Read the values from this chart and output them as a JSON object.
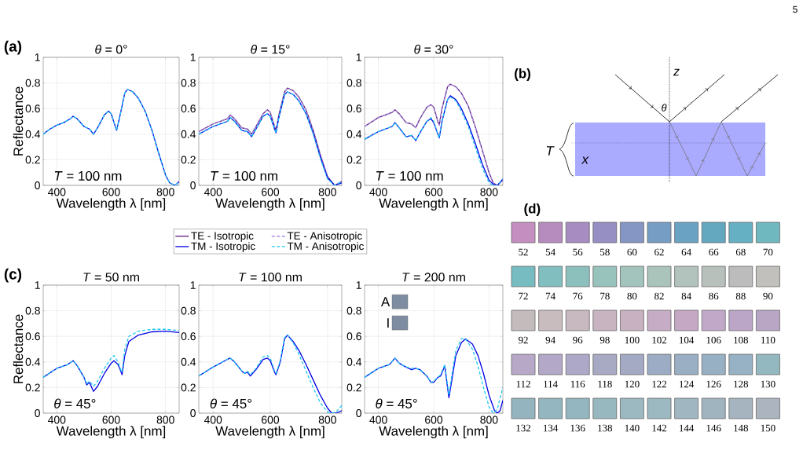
{
  "chart_data": [
    {
      "type": "line",
      "title": "*θ* = 0°",
      "xlabel": "Wavelength λ [nm]",
      "ylabel": "Reflectance",
      "annotations": [
        "*T* = 100 nm",
        "(a)"
      ],
      "xlim": [
        350,
        850
      ],
      "ylim": [
        0,
        1
      ],
      "xticks": [
        400,
        600,
        800
      ],
      "yticks": [
        0,
        0.2,
        0.4,
        0.6,
        0.8,
        1
      ],
      "grid": true,
      "series": [
        {
          "color": "#0000e6",
          "line_style": "solid",
          "x": [
            350,
            375,
            400,
            425,
            450,
            460,
            475,
            500,
            520,
            535,
            550,
            575,
            590,
            600,
            615,
            620,
            630,
            650,
            660,
            680,
            700,
            725,
            750,
            775,
            800,
            815,
            835,
            850
          ],
          "values": [
            0.4,
            0.44,
            0.47,
            0.49,
            0.52,
            0.54,
            0.52,
            0.46,
            0.44,
            0.4,
            0.45,
            0.55,
            0.58,
            0.56,
            0.46,
            0.43,
            0.52,
            0.72,
            0.75,
            0.73,
            0.68,
            0.58,
            0.43,
            0.25,
            0.08,
            0.02,
            0.0,
            0.03
          ]
        },
        {
          "color": "#1ec8f0",
          "line_style": "dashed",
          "x": [
            350,
            375,
            400,
            425,
            450,
            460,
            475,
            500,
            520,
            535,
            550,
            575,
            590,
            600,
            615,
            620,
            630,
            650,
            660,
            680,
            700,
            725,
            750,
            775,
            800,
            815,
            835,
            850
          ],
          "values": [
            0.4,
            0.44,
            0.47,
            0.49,
            0.52,
            0.54,
            0.52,
            0.46,
            0.44,
            0.4,
            0.45,
            0.55,
            0.58,
            0.56,
            0.46,
            0.43,
            0.52,
            0.72,
            0.75,
            0.73,
            0.68,
            0.58,
            0.43,
            0.25,
            0.08,
            0.02,
            0.0,
            0.03
          ]
        }
      ]
    },
    {
      "type": "line",
      "title": "*θ* = 15°",
      "xlabel": "Wavelength λ [nm]",
      "annotations": [
        "*T* = 100 nm"
      ],
      "xlim": [
        350,
        850
      ],
      "ylim": [
        0,
        1
      ],
      "xticks": [
        400,
        600,
        800
      ],
      "yticks": [
        0,
        0.2,
        0.4,
        0.6,
        0.8,
        1
      ],
      "grid": true,
      "legend": "bottom",
      "series": [
        {
          "name": "TE - Isotropic",
          "color": "#5b1a7a",
          "line_style": "solid",
          "x": [
            350,
            400,
            450,
            460,
            475,
            500,
            520,
            535,
            550,
            575,
            590,
            600,
            615,
            620,
            630,
            650,
            660,
            680,
            700,
            725,
            750,
            775,
            800,
            825,
            850
          ],
          "values": [
            0.42,
            0.48,
            0.52,
            0.55,
            0.52,
            0.45,
            0.44,
            0.4,
            0.46,
            0.56,
            0.59,
            0.57,
            0.46,
            0.43,
            0.55,
            0.73,
            0.76,
            0.74,
            0.69,
            0.59,
            0.43,
            0.24,
            0.07,
            0.0,
            0.03
          ]
        },
        {
          "name": "TE - Anisotropic",
          "color": "#a98ee0",
          "line_style": "dashed",
          "x": [
            350,
            400,
            450,
            460,
            475,
            500,
            520,
            535,
            550,
            575,
            590,
            600,
            615,
            620,
            630,
            650,
            660,
            680,
            700,
            725,
            750,
            775,
            800,
            825,
            850
          ],
          "values": [
            0.42,
            0.48,
            0.52,
            0.55,
            0.52,
            0.45,
            0.44,
            0.4,
            0.46,
            0.56,
            0.59,
            0.57,
            0.46,
            0.43,
            0.55,
            0.73,
            0.76,
            0.74,
            0.69,
            0.59,
            0.43,
            0.24,
            0.07,
            0.0,
            0.03
          ]
        },
        {
          "name": "TM - Isotropic",
          "color": "#0000e6",
          "line_style": "solid",
          "x": [
            350,
            400,
            450,
            460,
            475,
            500,
            520,
            535,
            550,
            575,
            590,
            600,
            615,
            620,
            630,
            650,
            660,
            680,
            700,
            725,
            750,
            775,
            800,
            825,
            850
          ],
          "values": [
            0.4,
            0.46,
            0.5,
            0.53,
            0.5,
            0.43,
            0.42,
            0.38,
            0.44,
            0.54,
            0.56,
            0.54,
            0.44,
            0.41,
            0.53,
            0.71,
            0.73,
            0.71,
            0.66,
            0.56,
            0.41,
            0.22,
            0.06,
            0.0,
            0.02
          ]
        },
        {
          "name": "TM - Anisotropic",
          "color": "#1ec8f0",
          "line_style": "dashed",
          "x": [
            350,
            400,
            450,
            460,
            475,
            500,
            520,
            535,
            550,
            575,
            590,
            600,
            615,
            620,
            630,
            650,
            660,
            680,
            700,
            725,
            750,
            775,
            800,
            825,
            850
          ],
          "values": [
            0.4,
            0.46,
            0.5,
            0.53,
            0.5,
            0.43,
            0.42,
            0.38,
            0.44,
            0.54,
            0.56,
            0.54,
            0.44,
            0.41,
            0.53,
            0.71,
            0.73,
            0.71,
            0.66,
            0.56,
            0.4,
            0.21,
            0.05,
            0.0,
            0.03
          ]
        }
      ]
    },
    {
      "type": "line",
      "title": "*θ* = 30°",
      "xlabel": "Wavelength λ [nm]",
      "annotations": [
        "*T* = 100 nm"
      ],
      "xlim": [
        350,
        850
      ],
      "ylim": [
        0,
        1
      ],
      "xticks": [
        400,
        600,
        800
      ],
      "yticks": [
        0,
        0.2,
        0.4,
        0.6,
        0.8,
        1
      ],
      "grid": true,
      "series": [
        {
          "color": "#5b1a7a",
          "line_style": "solid",
          "x": [
            350,
            400,
            450,
            460,
            475,
            500,
            520,
            535,
            550,
            575,
            590,
            600,
            615,
            620,
            630,
            650,
            660,
            680,
            700,
            725,
            750,
            775,
            800,
            815,
            830,
            850
          ],
          "values": [
            0.46,
            0.53,
            0.57,
            0.59,
            0.56,
            0.49,
            0.48,
            0.45,
            0.52,
            0.61,
            0.63,
            0.61,
            0.5,
            0.47,
            0.6,
            0.77,
            0.79,
            0.77,
            0.72,
            0.62,
            0.46,
            0.28,
            0.1,
            0.02,
            0.0,
            0.04
          ]
        },
        {
          "color": "#a98ee0",
          "line_style": "dashed",
          "x": [
            350,
            400,
            450,
            460,
            475,
            500,
            520,
            535,
            550,
            575,
            590,
            600,
            615,
            620,
            630,
            650,
            660,
            680,
            700,
            725,
            750,
            775,
            800,
            815,
            830,
            850
          ],
          "values": [
            0.46,
            0.53,
            0.57,
            0.59,
            0.56,
            0.49,
            0.48,
            0.45,
            0.52,
            0.61,
            0.63,
            0.61,
            0.5,
            0.47,
            0.6,
            0.77,
            0.79,
            0.77,
            0.72,
            0.62,
            0.46,
            0.28,
            0.1,
            0.02,
            0.0,
            0.04
          ]
        },
        {
          "color": "#0000e6",
          "line_style": "solid",
          "x": [
            350,
            400,
            450,
            460,
            475,
            500,
            520,
            535,
            550,
            575,
            590,
            600,
            615,
            620,
            630,
            650,
            660,
            680,
            700,
            725,
            750,
            775,
            800,
            815,
            830,
            850
          ],
          "values": [
            0.36,
            0.42,
            0.46,
            0.49,
            0.45,
            0.38,
            0.39,
            0.35,
            0.41,
            0.5,
            0.52,
            0.49,
            0.4,
            0.37,
            0.5,
            0.67,
            0.7,
            0.67,
            0.6,
            0.48,
            0.33,
            0.17,
            0.04,
            0.01,
            0.0,
            0.05
          ]
        },
        {
          "color": "#1ec8f0",
          "line_style": "dashed",
          "x": [
            350,
            400,
            450,
            460,
            475,
            500,
            520,
            535,
            550,
            575,
            590,
            600,
            615,
            620,
            630,
            650,
            660,
            680,
            700,
            725,
            750,
            775,
            800,
            815,
            830,
            850
          ],
          "values": [
            0.36,
            0.42,
            0.46,
            0.49,
            0.45,
            0.38,
            0.39,
            0.35,
            0.41,
            0.5,
            0.53,
            0.5,
            0.4,
            0.37,
            0.5,
            0.67,
            0.69,
            0.66,
            0.58,
            0.46,
            0.3,
            0.14,
            0.02,
            0.0,
            0.0,
            0.05
          ]
        }
      ]
    },
    {
      "type": "line",
      "title": "*T* = 50 nm",
      "xlabel": "Wavelength λ [nm]",
      "ylabel": "Reflectance",
      "annotations": [
        "*θ* = 45°",
        "(c)"
      ],
      "xlim": [
        350,
        850
      ],
      "ylim": [
        0,
        1
      ],
      "xticks": [
        400,
        600,
        800
      ],
      "yticks": [
        0,
        0.2,
        0.4,
        0.6,
        0.8,
        1
      ],
      "grid": true,
      "series": [
        {
          "color": "#0000e6",
          "line_style": "solid",
          "x": [
            350,
            400,
            440,
            460,
            475,
            500,
            510,
            520,
            535,
            550,
            575,
            600,
            610,
            625,
            635,
            640,
            650,
            665,
            700,
            750,
            800,
            850
          ],
          "values": [
            0.28,
            0.35,
            0.38,
            0.41,
            0.37,
            0.28,
            0.22,
            0.24,
            0.17,
            0.21,
            0.31,
            0.39,
            0.41,
            0.38,
            0.33,
            0.3,
            0.45,
            0.56,
            0.61,
            0.635,
            0.64,
            0.63
          ]
        },
        {
          "color": "#1ec8f0",
          "line_style": "dashed",
          "x": [
            350,
            400,
            440,
            460,
            475,
            500,
            510,
            520,
            535,
            550,
            575,
            600,
            610,
            625,
            635,
            640,
            650,
            665,
            700,
            750,
            800,
            850
          ],
          "values": [
            0.28,
            0.35,
            0.38,
            0.41,
            0.37,
            0.28,
            0.23,
            0.25,
            0.21,
            0.25,
            0.35,
            0.43,
            0.45,
            0.4,
            0.34,
            0.32,
            0.5,
            0.6,
            0.64,
            0.655,
            0.655,
            0.645
          ]
        }
      ]
    },
    {
      "type": "line",
      "title": "*T* = 100 nm",
      "xlabel": "Wavelength λ [nm]",
      "annotations": [
        "*θ* = 45°"
      ],
      "xlim": [
        350,
        850
      ],
      "ylim": [
        0,
        1
      ],
      "xticks": [
        400,
        600,
        800
      ],
      "yticks": [
        0,
        0.2,
        0.4,
        0.6,
        0.8,
        1
      ],
      "grid": true,
      "series": [
        {
          "color": "#0000e6",
          "line_style": "solid",
          "x": [
            350,
            400,
            450,
            460,
            475,
            500,
            510,
            520,
            530,
            550,
            575,
            590,
            600,
            615,
            620,
            635,
            650,
            660,
            680,
            700,
            725,
            750,
            775,
            800,
            815,
            830,
            850
          ],
          "values": [
            0.29,
            0.36,
            0.42,
            0.43,
            0.4,
            0.33,
            0.31,
            0.32,
            0.29,
            0.34,
            0.42,
            0.43,
            0.41,
            0.32,
            0.3,
            0.4,
            0.58,
            0.61,
            0.56,
            0.49,
            0.38,
            0.26,
            0.14,
            0.04,
            0.0,
            0.0,
            0.02
          ]
        },
        {
          "color": "#1ec8f0",
          "line_style": "dashed",
          "x": [
            350,
            400,
            450,
            460,
            475,
            500,
            510,
            520,
            530,
            550,
            575,
            590,
            600,
            615,
            620,
            635,
            650,
            660,
            680,
            700,
            725,
            750,
            775,
            800,
            815,
            830,
            850
          ],
          "values": [
            0.29,
            0.36,
            0.42,
            0.43,
            0.4,
            0.33,
            0.31,
            0.33,
            0.3,
            0.35,
            0.44,
            0.45,
            0.43,
            0.33,
            0.31,
            0.41,
            0.59,
            0.61,
            0.55,
            0.46,
            0.33,
            0.2,
            0.08,
            0.01,
            0.0,
            0.01,
            0.06
          ]
        }
      ]
    },
    {
      "type": "line",
      "title": "*T* = 200 nm",
      "xlabel": "Wavelength λ [nm]",
      "annotations": [
        "*θ* = 45°",
        "A",
        "I"
      ],
      "xlim": [
        350,
        850
      ],
      "ylim": [
        0,
        1
      ],
      "xticks": [
        400,
        600,
        800
      ],
      "yticks": [
        0,
        0.2,
        0.4,
        0.6,
        0.8,
        1
      ],
      "grid": true,
      "series": [
        {
          "color": "#0000e6",
          "line_style": "solid",
          "x": [
            350,
            400,
            440,
            460,
            475,
            500,
            520,
            535,
            550,
            575,
            590,
            600,
            615,
            625,
            640,
            650,
            655,
            665,
            680,
            700,
            715,
            740,
            760,
            780,
            800,
            820,
            830,
            840,
            850
          ],
          "values": [
            0.28,
            0.35,
            0.38,
            0.43,
            0.39,
            0.36,
            0.34,
            0.35,
            0.34,
            0.29,
            0.24,
            0.24,
            0.28,
            0.29,
            0.37,
            0.2,
            0.12,
            0.25,
            0.45,
            0.55,
            0.58,
            0.54,
            0.45,
            0.31,
            0.14,
            0.02,
            0.0,
            0.02,
            0.1
          ]
        },
        {
          "color": "#1ec8f0",
          "line_style": "dashed",
          "x": [
            350,
            400,
            440,
            460,
            475,
            500,
            520,
            535,
            550,
            575,
            590,
            600,
            615,
            625,
            640,
            650,
            655,
            665,
            680,
            700,
            715,
            740,
            760,
            780,
            800,
            815,
            830,
            840,
            850
          ],
          "values": [
            0.28,
            0.35,
            0.38,
            0.43,
            0.39,
            0.36,
            0.35,
            0.35,
            0.34,
            0.29,
            0.24,
            0.25,
            0.28,
            0.3,
            0.38,
            0.22,
            0.14,
            0.29,
            0.49,
            0.58,
            0.58,
            0.5,
            0.37,
            0.2,
            0.05,
            0.0,
            0.03,
            0.12,
            0.2
          ]
        }
      ]
    },
    {
      "type": "other",
      "annotations": [
        "(b)",
        "*z*",
        "*θ*",
        "*T*",
        "*x*",
        "5"
      ]
    },
    {
      "type": "heatmap",
      "title": "(d)",
      "data_labels": true,
      "categories": [
        null,
        null,
        null,
        null,
        null,
        null,
        null,
        null,
        null,
        null
      ],
      "y_categories": [
        null,
        null,
        null,
        null,
        null
      ],
      "cells": [
        [
          52,
          54,
          56,
          58,
          60,
          62,
          64,
          66,
          68,
          70
        ],
        [
          72,
          74,
          76,
          78,
          80,
          82,
          84,
          86,
          88,
          90
        ],
        [
          92,
          94,
          96,
          98,
          100,
          102,
          104,
          106,
          108,
          110
        ],
        [
          112,
          114,
          116,
          118,
          120,
          122,
          124,
          126,
          128,
          130
        ],
        [
          132,
          134,
          136,
          138,
          140,
          142,
          144,
          146,
          148,
          150
        ]
      ],
      "colors": [
        [
          "#c48ec0",
          "#b68cbe",
          "#a78cc2",
          "#968fc4",
          "#8696c4",
          "#769ec4",
          "#6aa2c4",
          "#64a8c0",
          "#66b0c4",
          "#70b8c0"
        ],
        [
          "#76bcc0",
          "#80bec0",
          "#8cc0bc",
          "#98c2bc",
          "#a2c4bc",
          "#aac4bc",
          "#b2c2bc",
          "#b8c0bc",
          "#bcbcbc",
          "#c2c0bc"
        ],
        [
          "#c4bcbc",
          "#c8bcbe",
          "#c8b8c0",
          "#c8b4c0",
          "#c8b2c2",
          "#c6acc4",
          "#c4a8c4",
          "#c2a8c8",
          "#bca6c8",
          "#b8a6c4"
        ],
        [
          "#b8a8c8",
          "#b4a8c8",
          "#ada8c8",
          "#a8aac4",
          "#a4aac4",
          "#9cacc4",
          "#9aaec4",
          "#98b0c4",
          "#96b2c4",
          "#94b8c0"
        ],
        [
          "#94b4c0",
          "#94b6c0",
          "#94b6c0",
          "#98b8c0",
          "#9cb8c0",
          "#9cb8c0",
          "#a0b6c0",
          "#a0b4c0",
          "#a6b4c0",
          "#acb4c0"
        ]
      ]
    }
  ]
}
